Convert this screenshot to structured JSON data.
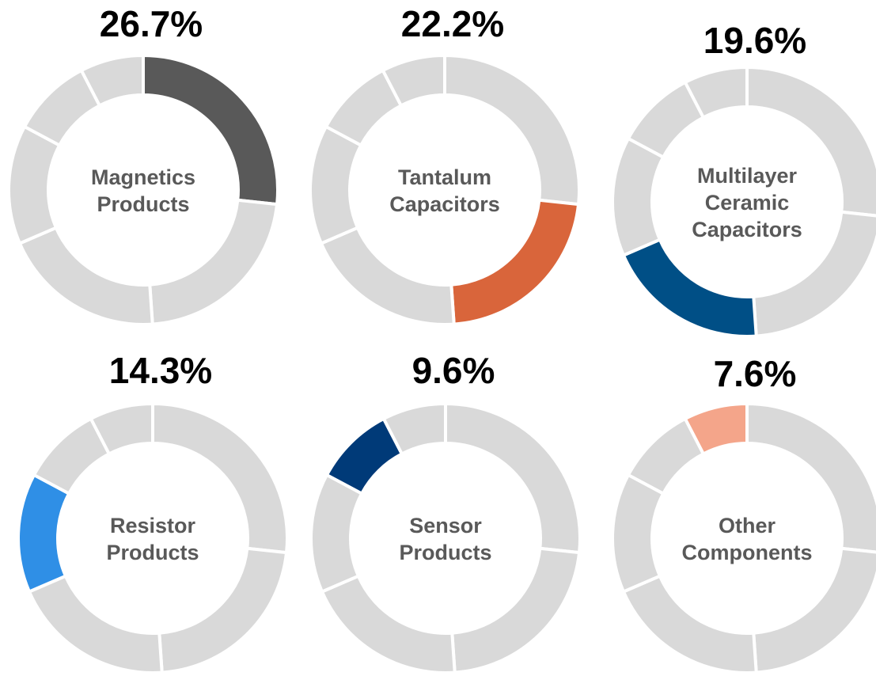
{
  "chart_data": {
    "type": "donut",
    "categories": [
      "Magnetics Products",
      "Tantalum Capacitors",
      "Multilayer Ceramic Capacitors",
      "Resistor Products",
      "Sensor Products",
      "Other Components"
    ],
    "values": [
      26.7,
      22.2,
      19.6,
      14.3,
      9.6,
      7.6
    ],
    "value_labels": [
      "26.7%",
      "22.2%",
      "19.6%",
      "14.3%",
      "9.6%",
      "7.6%"
    ],
    "colors": [
      "#595959",
      "#d9653b",
      "#004f86",
      "#2f8fe6",
      "#003a78",
      "#f4a58a"
    ],
    "other_color": "#d9d9d9"
  }
}
